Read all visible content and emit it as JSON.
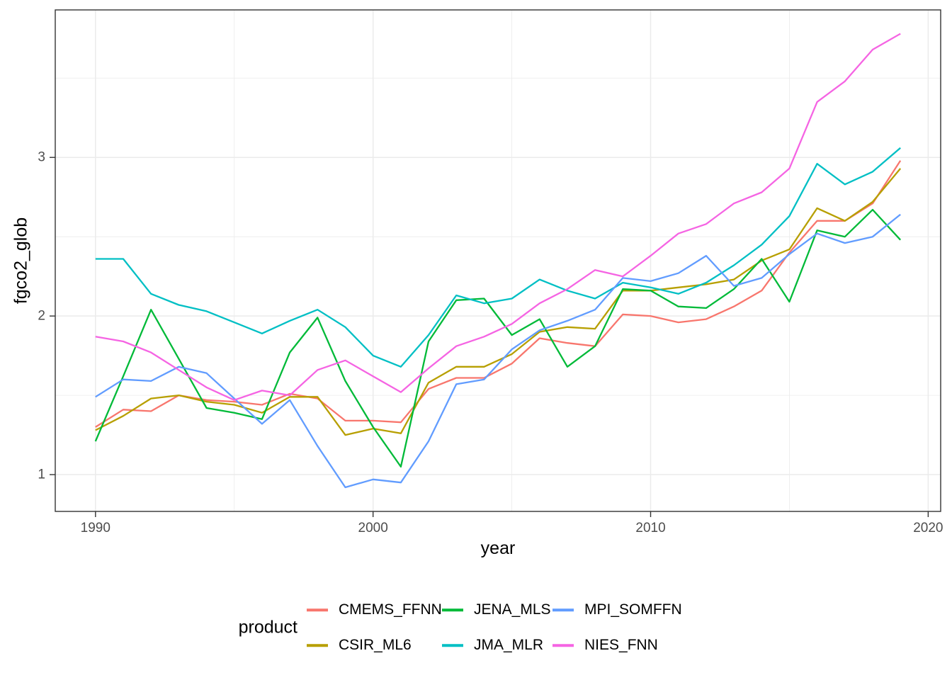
{
  "chart_data": {
    "type": "line",
    "title": "",
    "xlabel": "year",
    "ylabel": "fgco2_glob",
    "legend_title": "product",
    "legend_position": "bottom",
    "grid": true,
    "xlim": [
      1988.55,
      2020.45
    ],
    "ylim": [
      0.768,
      3.93
    ],
    "x_major_ticks": [
      1990,
      2000,
      2010,
      2020
    ],
    "x_major_labels": [
      "1990",
      "2000",
      "2010",
      "2020"
    ],
    "x_minor_ticks": [
      1995,
      2005,
      2015
    ],
    "y_major_ticks": [
      1,
      2,
      3
    ],
    "y_major_labels": [
      "1",
      "2",
      "3"
    ],
    "y_minor_ticks": [
      1.5,
      2.5,
      3.5
    ],
    "x": [
      1990,
      1991,
      1992,
      1993,
      1994,
      1995,
      1996,
      1997,
      1998,
      1999,
      2000,
      2001,
      2002,
      2003,
      2004,
      2005,
      2006,
      2007,
      2008,
      2009,
      2010,
      2011,
      2012,
      2013,
      2014,
      2015,
      2016,
      2017,
      2018,
      2019
    ],
    "series": [
      {
        "name": "CMEMS_FFNN",
        "color": "#F8766D",
        "values": [
          1.3,
          1.41,
          1.4,
          1.5,
          1.47,
          1.46,
          1.44,
          1.51,
          1.48,
          1.34,
          1.34,
          1.33,
          1.54,
          1.61,
          1.61,
          1.7,
          1.86,
          1.83,
          1.81,
          2.01,
          2.0,
          1.96,
          1.98,
          2.06,
          2.16,
          2.4,
          2.6,
          2.6,
          2.71,
          2.98
        ]
      },
      {
        "name": "CSIR_ML6",
        "color": "#B79F00",
        "values": [
          1.28,
          1.37,
          1.48,
          1.5,
          1.46,
          1.44,
          1.39,
          1.49,
          1.49,
          1.25,
          1.29,
          1.26,
          1.58,
          1.68,
          1.68,
          1.76,
          1.9,
          1.93,
          1.92,
          2.16,
          2.16,
          2.18,
          2.2,
          2.23,
          2.35,
          2.42,
          2.68,
          2.6,
          2.72,
          2.93
        ]
      },
      {
        "name": "JENA_MLS",
        "color": "#00BA38",
        "values": [
          1.21,
          1.62,
          2.04,
          1.73,
          1.42,
          1.39,
          1.35,
          1.77,
          1.99,
          1.59,
          1.3,
          1.05,
          1.84,
          2.1,
          2.11,
          1.88,
          1.98,
          1.68,
          1.81,
          2.17,
          2.16,
          2.06,
          2.05,
          2.17,
          2.36,
          2.09,
          2.54,
          2.5,
          2.67,
          2.48
        ]
      },
      {
        "name": "JMA_MLR",
        "color": "#00BFC4",
        "values": [
          2.36,
          2.36,
          2.14,
          2.07,
          2.03,
          1.96,
          1.89,
          1.97,
          2.04,
          1.93,
          1.75,
          1.68,
          1.88,
          2.13,
          2.08,
          2.11,
          2.23,
          2.16,
          2.11,
          2.21,
          2.18,
          2.14,
          2.21,
          2.32,
          2.45,
          2.63,
          2.96,
          2.83,
          2.91,
          3.06
        ]
      },
      {
        "name": "MPI_SOMFFN",
        "color": "#619CFF",
        "values": [
          1.49,
          1.6,
          1.59,
          1.68,
          1.64,
          1.48,
          1.32,
          1.47,
          1.18,
          0.92,
          0.97,
          0.95,
          1.21,
          1.57,
          1.6,
          1.79,
          1.91,
          1.97,
          2.04,
          2.24,
          2.22,
          2.27,
          2.38,
          2.19,
          2.24,
          2.39,
          2.52,
          2.46,
          2.5,
          2.64
        ]
      },
      {
        "name": "NIES_FNN",
        "color": "#F564E3",
        "values": [
          1.87,
          1.84,
          1.77,
          1.66,
          1.55,
          1.47,
          1.53,
          1.5,
          1.66,
          1.72,
          1.62,
          1.52,
          1.67,
          1.81,
          1.87,
          1.95,
          2.08,
          2.17,
          2.29,
          2.25,
          2.38,
          2.52,
          2.58,
          2.71,
          2.78,
          2.93,
          3.35,
          3.48,
          3.68,
          3.78
        ]
      }
    ],
    "style": {
      "grid_color": "#EBEBEB",
      "panel_border_color": "#333333",
      "tick_color": "#333333",
      "tick_label_color": "#4D4D4D",
      "background": "#FFFFFF"
    }
  }
}
